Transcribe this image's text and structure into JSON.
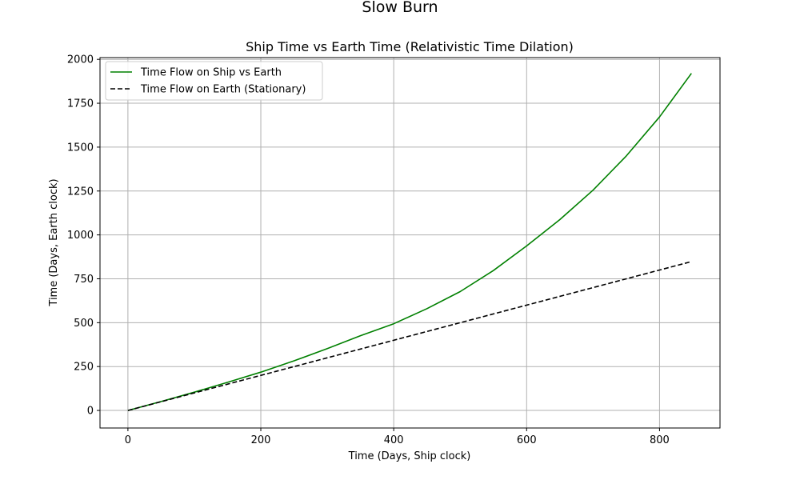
{
  "figure": {
    "suptitle": "Slow Burn"
  },
  "chart_data": {
    "type": "line",
    "title": "Ship Time vs Earth Time (Relativistic Time Dilation)",
    "xlabel": "Time (Days, Ship clock)",
    "ylabel": "Time (Days, Earth clock)",
    "xlim": [
      -42,
      891
    ],
    "ylim": [
      -100,
      2010
    ],
    "xticks": [
      0,
      200,
      400,
      600,
      800
    ],
    "yticks": [
      0,
      250,
      500,
      750,
      1000,
      1250,
      1500,
      1750,
      2000
    ],
    "grid": true,
    "legend": "top-left",
    "series": [
      {
        "name": "Time Flow on Ship vs Earth",
        "color": "#008000",
        "linestyle": "solid",
        "x": [
          0,
          50,
          100,
          150,
          200,
          250,
          300,
          350,
          400,
          450,
          500,
          550,
          600,
          650,
          700,
          750,
          800,
          848
        ],
        "y": [
          0,
          51,
          104,
          160,
          218,
          283,
          352,
          426,
          494,
          580,
          677,
          797,
          937,
          1087,
          1255,
          1450,
          1672,
          1920
        ]
      },
      {
        "name": "Time Flow on Earth (Stationary)",
        "color": "#000000",
        "linestyle": "dashed",
        "x": [
          0,
          848
        ],
        "y": [
          0,
          848
        ]
      }
    ]
  }
}
